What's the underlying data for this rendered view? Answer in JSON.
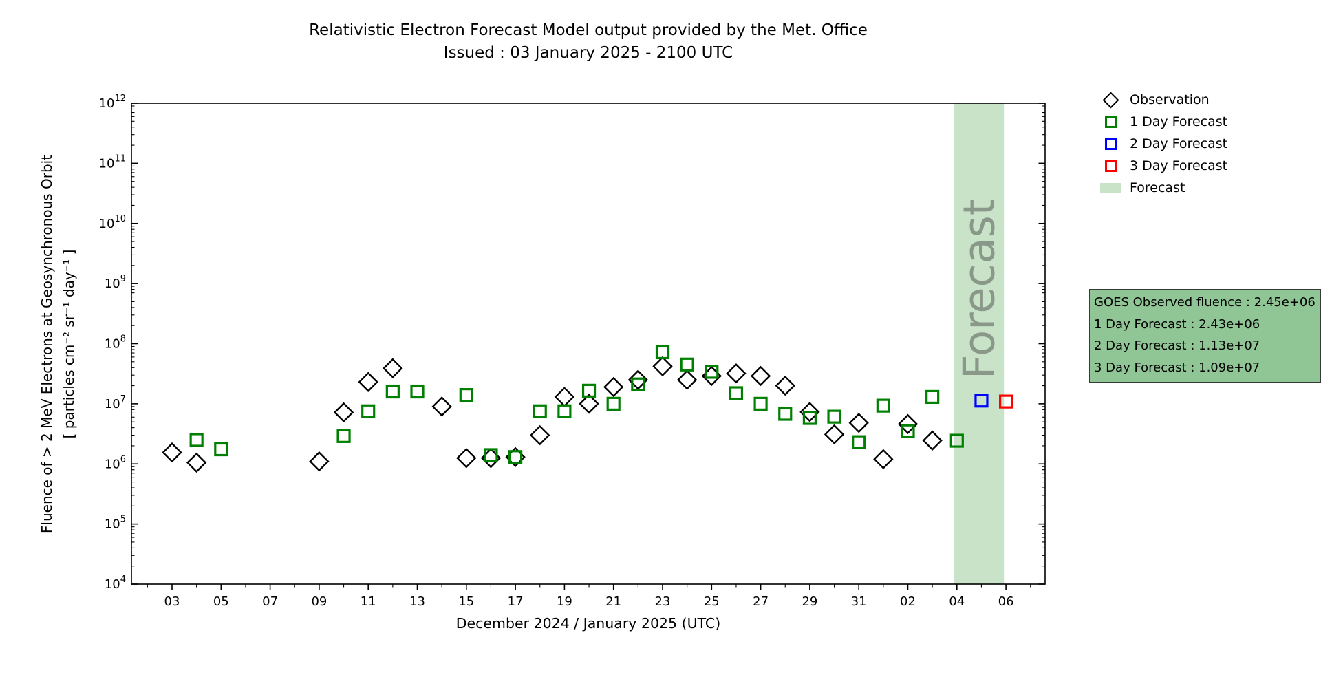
{
  "chart_data": {
    "type": "scatter",
    "title": "Relativistic Electron Forecast Model output provided by the Met. Office",
    "subtitle": "Issued : 03 January 2025 - 2100 UTC",
    "xlabel": "December 2024 / January 2025 (UTC)",
    "ylabel": "Fluence of > 2 MeV Electrons at Geosynchronous Orbit",
    "ylabel_units": "[ particles cm⁻² sr⁻¹ day⁻¹ ]",
    "y_scale": "log",
    "y_tick_exponents": [
      4,
      5,
      6,
      7,
      8,
      9,
      10,
      11,
      12
    ],
    "y_range": [
      10000.0,
      1000000000000.0
    ],
    "grid": false,
    "legend_position": "right",
    "x_day_note": "day index: 1 = 01 Dec 2024 ... 31 = 31 Dec 2024, 32 = 01 Jan 2025 ... 37 = 06 Jan 2025",
    "x_range_days": [
      1.35,
      38.55
    ],
    "x_major_ticks": [
      {
        "day": 3,
        "label": "03"
      },
      {
        "day": 5,
        "label": "05"
      },
      {
        "day": 7,
        "label": "07"
      },
      {
        "day": 9,
        "label": "09"
      },
      {
        "day": 11,
        "label": "11"
      },
      {
        "day": 13,
        "label": "13"
      },
      {
        "day": 15,
        "label": "15"
      },
      {
        "day": 17,
        "label": "17"
      },
      {
        "day": 19,
        "label": "19"
      },
      {
        "day": 21,
        "label": "21"
      },
      {
        "day": 23,
        "label": "23"
      },
      {
        "day": 25,
        "label": "25"
      },
      {
        "day": 27,
        "label": "27"
      },
      {
        "day": 29,
        "label": "29"
      },
      {
        "day": 31,
        "label": "31"
      },
      {
        "day": 33,
        "label": "02"
      },
      {
        "day": 35,
        "label": "04"
      },
      {
        "day": 37,
        "label": "06"
      }
    ],
    "forecast_band": {
      "start_day": 34.88,
      "end_day": 36.92,
      "color": "#c9e3c9",
      "watermark": "Forecast",
      "watermark_color": "#8a988a"
    },
    "series": [
      {
        "name": "Observation",
        "marker": "diamond",
        "color": "#000000",
        "points": [
          [
            3,
            1550000.0
          ],
          [
            4,
            1050000.0
          ],
          [
            9,
            1100000.0
          ],
          [
            10,
            7200000.0
          ],
          [
            11,
            23000000.0
          ],
          [
            12,
            39000000.0
          ],
          [
            14,
            9000000.0
          ],
          [
            15,
            1250000.0
          ],
          [
            16,
            1250000.0
          ],
          [
            17,
            1300000.0
          ],
          [
            18,
            3000000.0
          ],
          [
            19,
            13000000.0
          ],
          [
            20,
            10000000.0
          ],
          [
            21,
            19000000.0
          ],
          [
            22,
            25000000.0
          ],
          [
            23,
            42000000.0
          ],
          [
            24,
            25000000.0
          ],
          [
            25,
            29000000.0
          ],
          [
            26,
            32000000.0
          ],
          [
            27,
            29000000.0
          ],
          [
            28,
            20000000.0
          ],
          [
            29,
            7300000.0
          ],
          [
            30,
            3100000.0
          ],
          [
            31,
            4800000.0
          ],
          [
            32,
            1200000.0
          ],
          [
            33,
            4600000.0
          ],
          [
            34,
            2450000.0
          ]
        ]
      },
      {
        "name": "1 Day Forecast",
        "marker": "square",
        "color": "#008000",
        "points": [
          [
            4,
            2500000.0
          ],
          [
            5,
            1750000.0
          ],
          [
            10,
            2900000.0
          ],
          [
            11,
            7500000.0
          ],
          [
            12,
            16000000.0
          ],
          [
            13,
            16000000.0
          ],
          [
            15,
            14000000.0
          ],
          [
            16,
            1400000.0
          ],
          [
            17,
            1300000.0
          ],
          [
            18,
            7500000.0
          ],
          [
            19,
            7500000.0
          ],
          [
            20,
            16500000.0
          ],
          [
            21,
            10000000.0
          ],
          [
            22,
            21000000.0
          ],
          [
            23,
            72000000.0
          ],
          [
            24,
            45000000.0
          ],
          [
            25,
            34000000.0
          ],
          [
            26,
            15000000.0
          ],
          [
            27,
            10000000.0
          ],
          [
            28,
            6800000.0
          ],
          [
            29,
            5800000.0
          ],
          [
            30,
            6100000.0
          ],
          [
            31,
            2300000.0
          ],
          [
            32,
            9300000.0
          ],
          [
            33,
            3500000.0
          ],
          [
            34,
            13000000.0
          ],
          [
            35,
            2430000.0
          ]
        ]
      },
      {
        "name": "2 Day Forecast",
        "marker": "square",
        "color": "#0000ff",
        "points": [
          [
            36,
            11300000.0
          ]
        ]
      },
      {
        "name": "3 Day Forecast",
        "marker": "square",
        "color": "#ff0000",
        "points": [
          [
            37,
            10900000.0
          ]
        ]
      }
    ]
  },
  "info_box": {
    "background": "#90c695",
    "lines": [
      "GOES Observed fluence : 2.45e+06",
      "1 Day Forecast : 2.43e+06",
      "2 Day Forecast : 1.13e+07",
      "3 Day Forecast : 1.09e+07"
    ]
  }
}
